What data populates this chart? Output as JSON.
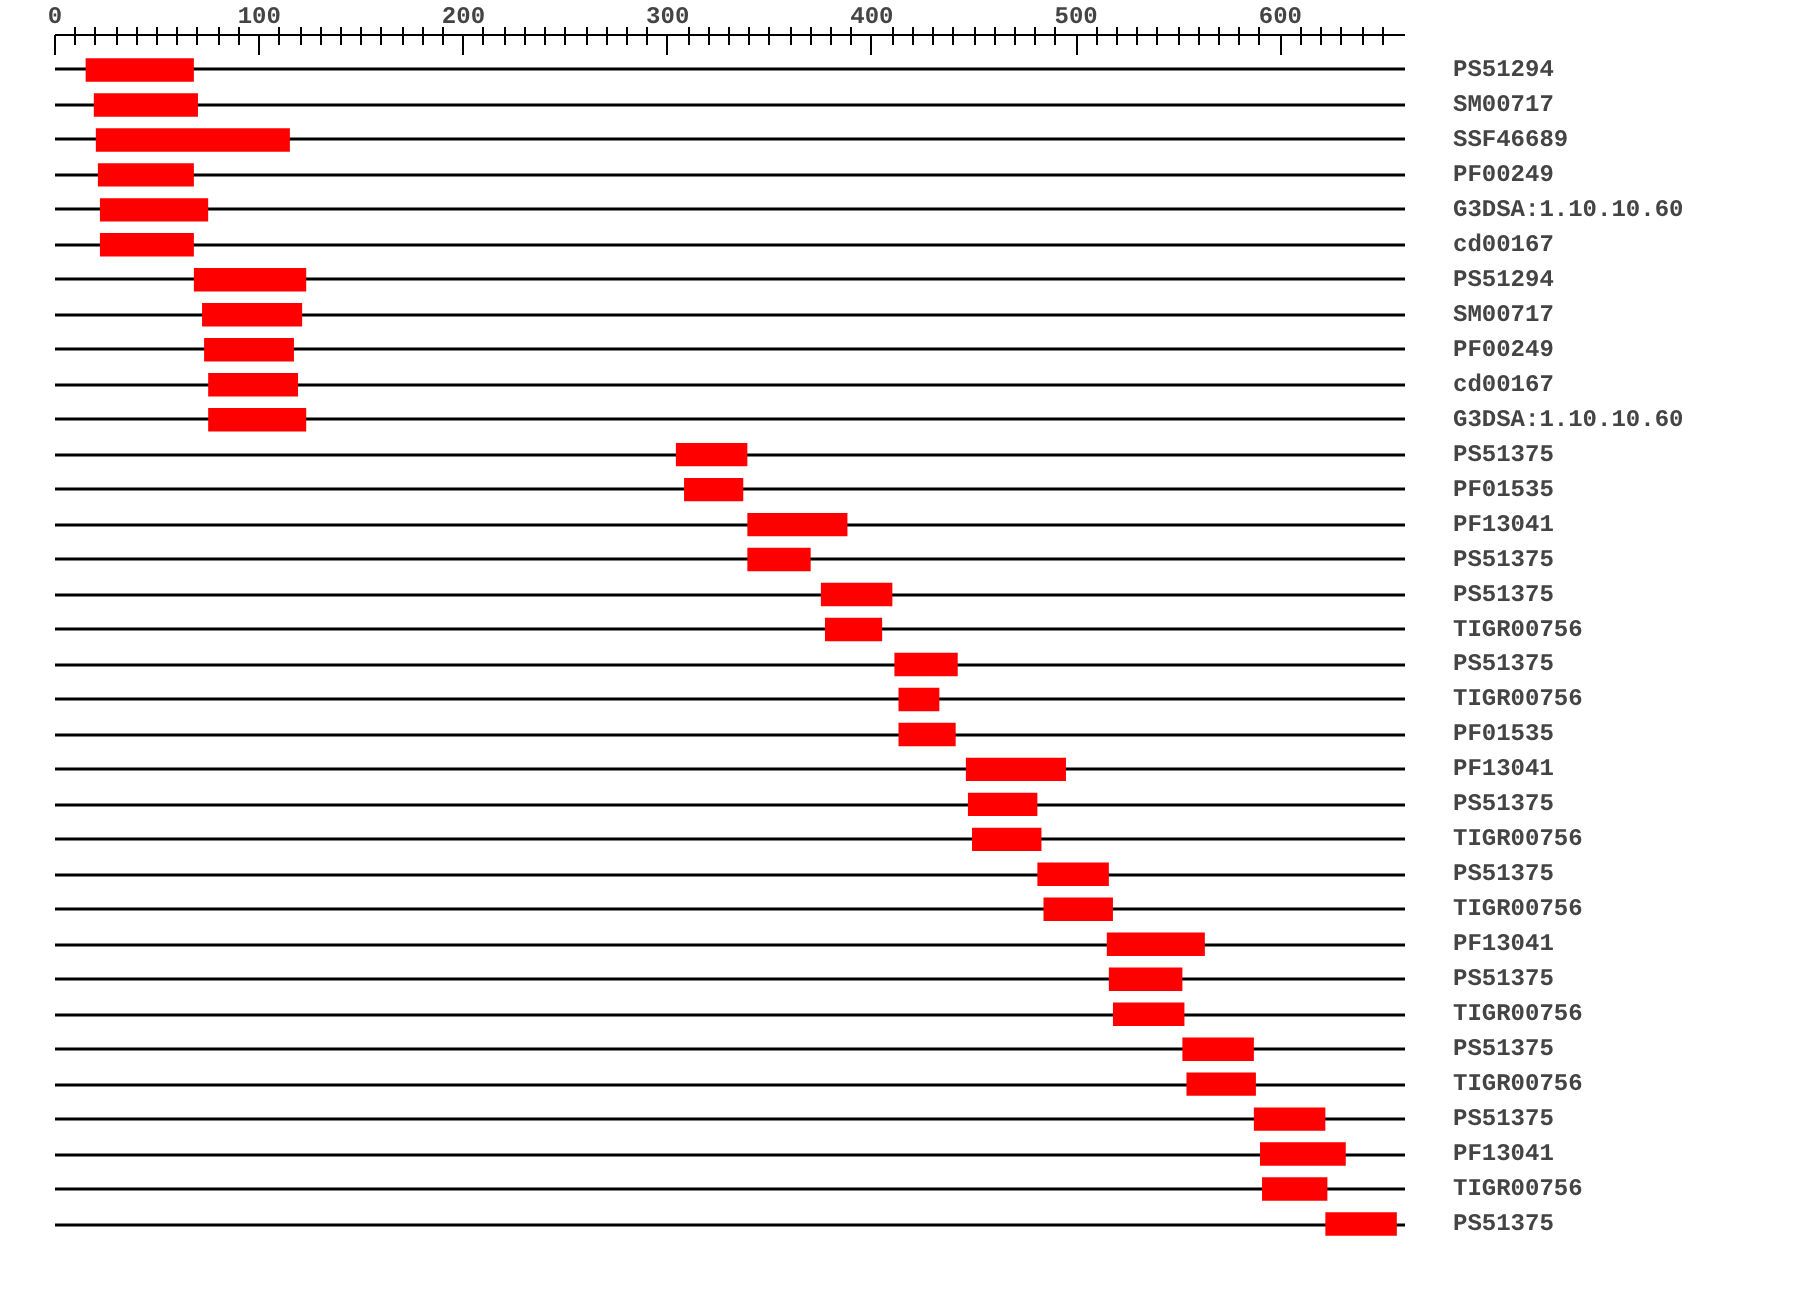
{
  "chart_data": {
    "type": "bar",
    "orientation": "horizontal",
    "grid": "y",
    "categories": [
      "PS51294",
      "SM00717",
      "SSF46689",
      "PF00249",
      "G3DSA:1.10.10.60",
      "cd00167",
      "PS51294",
      "SM00717",
      "PF00249",
      "cd00167",
      "G3DSA:1.10.10.60",
      "PS51375",
      "PF01535",
      "PF13041",
      "PS51375",
      "PS51375",
      "TIGR00756",
      "PS51375",
      "TIGR00756",
      "PF01535",
      "PF13041",
      "PS51375",
      "TIGR00756",
      "PS51375",
      "TIGR00756",
      "PF13041",
      "PS51375",
      "TIGR00756",
      "PS51375",
      "TIGR00756",
      "PS51375",
      "PF13041",
      "TIGR00756",
      "PS51375"
    ],
    "base": [
      15,
      19,
      20,
      21,
      22,
      22,
      68,
      72,
      73,
      75,
      75,
      304,
      308,
      339,
      339,
      375,
      377,
      411,
      413,
      413,
      446,
      447,
      449,
      481,
      484,
      515,
      516,
      518,
      552,
      554,
      587,
      590,
      591,
      622
    ],
    "values": [
      53,
      51,
      95,
      47,
      53,
      46,
      55,
      49,
      44,
      44,
      48,
      35,
      29,
      49,
      31,
      35,
      28,
      31,
      20,
      28,
      49,
      34,
      34,
      35,
      34,
      48,
      36,
      35,
      35,
      34,
      35,
      42,
      32,
      35
    ],
    "color": "#ff0000",
    "xlim": [
      0,
      661
    ],
    "xticks": [
      0,
      {
        "value": 10,
        "label": null
      },
      {
        "value": 20,
        "label": null
      },
      {
        "value": 30,
        "label": null
      },
      {
        "value": 40,
        "label": null
      },
      {
        "value": 50,
        "label": null
      },
      {
        "value": 60,
        "label": null
      },
      {
        "value": 70,
        "label": null
      },
      {
        "value": 80,
        "label": null
      },
      {
        "value": 90,
        "label": null
      },
      100,
      {
        "value": 110,
        "label": null
      },
      {
        "value": 120,
        "label": null
      },
      {
        "value": 130,
        "label": null
      },
      {
        "value": 140,
        "label": null
      },
      {
        "value": 150,
        "label": null
      },
      {
        "value": 160,
        "label": null
      },
      {
        "value": 170,
        "label": null
      },
      {
        "value": 180,
        "label": null
      },
      {
        "value": 190,
        "label": null
      },
      200,
      {
        "value": 210,
        "label": null
      },
      {
        "value": 220,
        "label": null
      },
      {
        "value": 230,
        "label": null
      },
      {
        "value": 240,
        "label": null
      },
      {
        "value": 250,
        "label": null
      },
      {
        "value": 260,
        "label": null
      },
      {
        "value": 270,
        "label": null
      },
      {
        "value": 280,
        "label": null
      },
      {
        "value": 290,
        "label": null
      },
      300,
      {
        "value": 310,
        "label": null
      },
      {
        "value": 320,
        "label": null
      },
      {
        "value": 330,
        "label": null
      },
      {
        "value": 340,
        "label": null
      },
      {
        "value": 350,
        "label": null
      },
      {
        "value": 360,
        "label": null
      },
      {
        "value": 370,
        "label": null
      },
      {
        "value": 380,
        "label": null
      },
      {
        "value": 390,
        "label": null
      },
      400,
      {
        "value": 410,
        "label": null
      },
      {
        "value": 420,
        "label": null
      },
      {
        "value": 430,
        "label": null
      },
      {
        "value": 440,
        "label": null
      },
      {
        "value": 450,
        "label": null
      },
      {
        "value": 460,
        "label": null
      },
      {
        "value": 470,
        "label": null
      },
      {
        "value": 480,
        "label": null
      },
      {
        "value": 490,
        "label": null
      },
      500,
      {
        "value": 510,
        "label": null
      },
      {
        "value": 520,
        "label": null
      },
      {
        "value": 530,
        "label": null
      },
      {
        "value": 540,
        "label": null
      },
      {
        "value": 550,
        "label": null
      },
      {
        "value": 560,
        "label": null
      },
      {
        "value": 570,
        "label": null
      },
      {
        "value": 580,
        "label": null
      },
      {
        "value": 590,
        "label": null
      },
      600,
      {
        "value": 610,
        "label": null
      },
      {
        "value": 620,
        "label": null
      },
      {
        "value": 630,
        "label": null
      },
      {
        "value": 640,
        "label": null
      },
      {
        "value": 650,
        "label": null
      }
    ]
  }
}
